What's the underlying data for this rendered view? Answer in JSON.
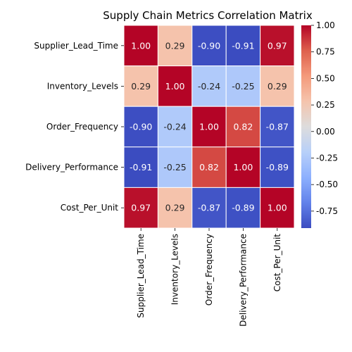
{
  "chart_data": {
    "type": "heatmap",
    "title": "Supply Chain Metrics Correlation Matrix",
    "row_labels": [
      "Supplier_Lead_Time",
      "Inventory_Levels",
      "Order_Frequency",
      "Delivery_Performance",
      "Cost_Per_Unit"
    ],
    "col_labels": [
      "Supplier_Lead_Time",
      "Inventory_Levels",
      "Order_Frequency",
      "Delivery_Performance",
      "Cost_Per_Unit"
    ],
    "values": [
      [
        1.0,
        0.29,
        -0.9,
        -0.91,
        0.97
      ],
      [
        0.29,
        1.0,
        -0.24,
        -0.25,
        0.29
      ],
      [
        -0.9,
        -0.24,
        1.0,
        0.82,
        -0.87
      ],
      [
        -0.91,
        -0.25,
        0.82,
        1.0,
        -0.89
      ],
      [
        0.97,
        0.29,
        -0.87,
        -0.89,
        1.0
      ]
    ],
    "annotation_format": "0.00",
    "colormap": "coolwarm",
    "vmin": -0.91,
    "vmax": 1.0,
    "colorbar_ticks": [
      "-0.75",
      "-0.50",
      "-0.25",
      "0.00",
      "0.25",
      "0.50",
      "0.75",
      "1.00"
    ],
    "colorbar_tick_values": [
      -0.75,
      -0.5,
      -0.25,
      0.0,
      0.25,
      0.5,
      0.75,
      1.0
    ],
    "grid": true,
    "gridline_color": "#ffffff"
  }
}
